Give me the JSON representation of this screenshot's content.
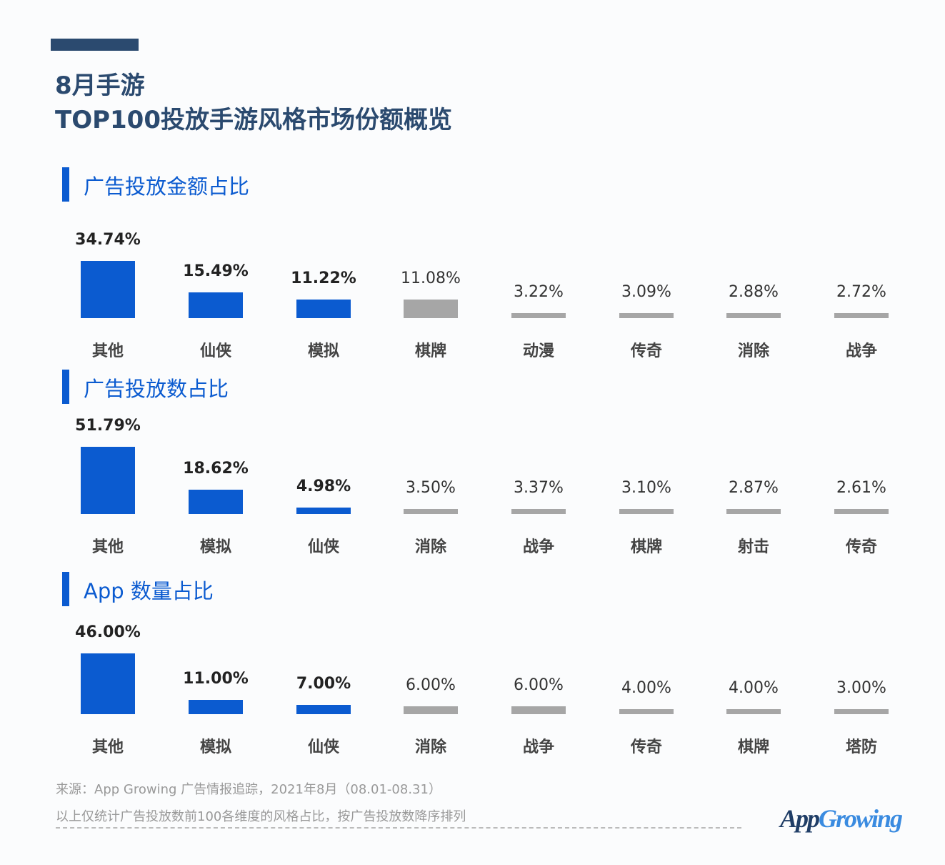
{
  "header": {
    "line1": "8月手游",
    "line2": "TOP100投放手游风格市场份额概览"
  },
  "colors": {
    "title": "#2b4a6f",
    "highlight": "#0b5bd0",
    "other": "#a6a6a6"
  },
  "chart_data": [
    {
      "type": "bar",
      "title": "广告投放金额占比",
      "categories": [
        "其他",
        "仙侠",
        "模拟",
        "棋牌",
        "动漫",
        "传奇",
        "消除",
        "战争"
      ],
      "values": [
        34.74,
        15.49,
        11.22,
        11.08,
        3.22,
        3.09,
        2.88,
        2.72
      ],
      "labels": [
        "34.74%",
        "15.49%",
        "11.22%",
        "11.08%",
        "3.22%",
        "3.09%",
        "2.88%",
        "2.72%"
      ],
      "highlighted": 3
    },
    {
      "type": "bar",
      "title": "广告投放数占比",
      "categories": [
        "其他",
        "模拟",
        "仙侠",
        "消除",
        "战争",
        "棋牌",
        "射击",
        "传奇"
      ],
      "values": [
        51.79,
        18.62,
        4.98,
        3.5,
        3.37,
        3.1,
        2.87,
        2.61
      ],
      "labels": [
        "51.79%",
        "18.62%",
        "4.98%",
        "3.50%",
        "3.37%",
        "3.10%",
        "2.87%",
        "2.61%"
      ],
      "highlighted": 3
    },
    {
      "type": "bar",
      "title": "App 数量占比",
      "categories": [
        "其他",
        "模拟",
        "仙侠",
        "消除",
        "战争",
        "传奇",
        "棋牌",
        "塔防"
      ],
      "values": [
        46.0,
        11.0,
        7.0,
        6.0,
        6.0,
        4.0,
        4.0,
        3.0
      ],
      "labels": [
        "46.00%",
        "11.00%",
        "7.00%",
        "6.00%",
        "6.00%",
        "4.00%",
        "4.00%",
        "3.00%"
      ],
      "highlighted": 3
    }
  ],
  "footer": {
    "source": "来源：App Growing 广告情报追踪，2021年8月（08.01-08.31）",
    "note": "以上仅统计广告投放数前100各维度的风格占比，按广告投放数降序排列",
    "logo_a": "App",
    "logo_b": "Growing"
  }
}
